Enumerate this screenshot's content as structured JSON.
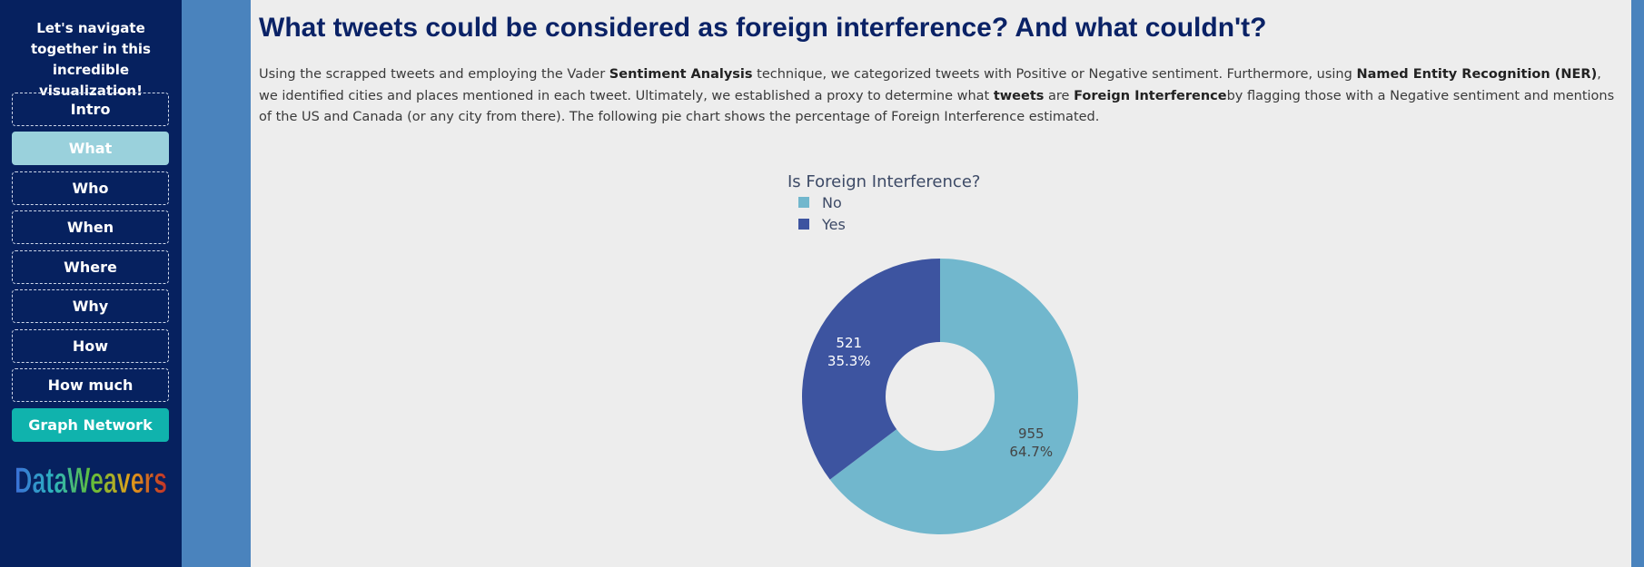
{
  "sidebar": {
    "tagline": "Let's navigate together in this incredible visualization!",
    "items": [
      {
        "label": "Intro"
      },
      {
        "label": "What"
      },
      {
        "label": "Who"
      },
      {
        "label": "When"
      },
      {
        "label": "Where"
      },
      {
        "label": "Why"
      },
      {
        "label": "How"
      },
      {
        "label": "How much"
      },
      {
        "label": "Graph Network"
      }
    ],
    "active": "What",
    "logo_text": "DataWeavers"
  },
  "main": {
    "title": "What tweets could be considered as foreign interference? And what couldn't?",
    "intro": {
      "p1": "Using the scrapped tweets and employing the Vader ",
      "b1": "Sentiment Analysis",
      "p2": " technique, we categorized tweets with Positive or Negative sentiment. Furthermore, using ",
      "b2": "Named Entity Recognition (NER)",
      "p3": ", we identified cities and places mentioned in each tweet. Ultimately, we established a proxy to determine what ",
      "b3": "tweets",
      "p4": " are ",
      "b4": "Foreign Interference",
      "p5": "by flagging those with a Negative sentiment and mentions of the US and Canada (or any city from there). The following pie chart shows the percentage of Foreign Interference estimated."
    }
  },
  "colors": {
    "no": "#71b7cd",
    "yes": "#3d54a0",
    "sidebar_bg": "#06215f",
    "title": "#0a2266"
  },
  "chart_data": {
    "type": "pie",
    "hole": true,
    "legend_title": "Is Foreign Interference?",
    "labels": [
      "No",
      "Yes"
    ],
    "values": [
      955,
      521
    ],
    "percent_labels": [
      "64.7%",
      "35.3%"
    ],
    "legend_placement": "top-left"
  }
}
